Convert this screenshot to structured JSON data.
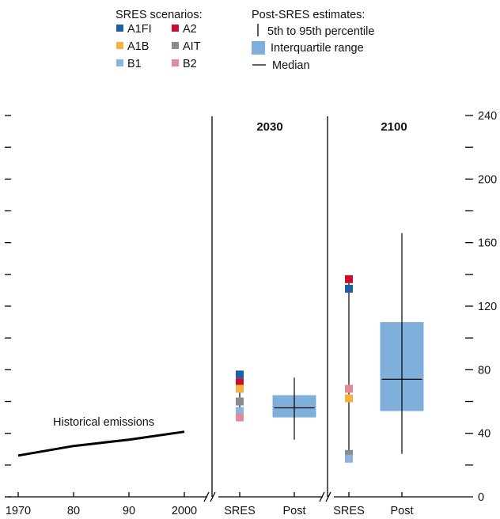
{
  "colors": {
    "A1FI": "#1f5fa6",
    "A2": "#c8102e",
    "A1B": "#f2b342",
    "AIT": "#8c8c8c",
    "B1": "#8ab4dc",
    "B2": "#e38a98",
    "iqr": "#7fb0dc",
    "line": "#000000"
  },
  "legend": {
    "sres_title": "SRES scenarios:",
    "sres_items": [
      {
        "key": "A1FI",
        "label": "A1FI"
      },
      {
        "key": "A2",
        "label": "A2"
      },
      {
        "key": "A1B",
        "label": "A1B"
      },
      {
        "key": "AIT",
        "label": "AIT"
      },
      {
        "key": "B1",
        "label": "B1"
      },
      {
        "key": "B2",
        "label": "B2"
      }
    ],
    "post_title": "Post-SRES estimates:",
    "post_items": [
      {
        "icon": "percentile-line-icon",
        "label": "5th to 95th percentile"
      },
      {
        "icon": "iqr-box-icon",
        "label": "Interquartile range"
      },
      {
        "icon": "median-line-icon",
        "label": "Median"
      }
    ]
  },
  "chart_data": {
    "type": "line",
    "y_ticks": [
      0,
      40,
      80,
      120,
      160,
      200,
      240
    ],
    "ylim": [
      0,
      240
    ],
    "historical": {
      "annotation": "Historical emissions",
      "x_ticks": [
        "1970",
        "80",
        "90",
        "2000"
      ],
      "x": [
        1970,
        1980,
        1990,
        2000
      ],
      "y": [
        26,
        32,
        36,
        41
      ]
    },
    "panels": [
      {
        "title": "2030",
        "categories": [
          "SRES",
          "Post"
        ],
        "sres": [
          {
            "scenario": "A1FI",
            "value": 77
          },
          {
            "scenario": "A2",
            "value": 72
          },
          {
            "scenario": "A1B",
            "value": 68
          },
          {
            "scenario": "AIT",
            "value": 60
          },
          {
            "scenario": "B1",
            "value": 54
          },
          {
            "scenario": "B2",
            "value": 50
          }
        ],
        "sres_range": [
          48,
          78
        ],
        "post": {
          "p5": 36,
          "q1": 50,
          "median": 56,
          "q3": 64,
          "p95": 75
        }
      },
      {
        "title": "2100",
        "categories": [
          "SRES",
          "Post"
        ],
        "sres": [
          {
            "scenario": "A2",
            "value": 137
          },
          {
            "scenario": "A1FI",
            "value": 131
          },
          {
            "scenario": "B2",
            "value": 68
          },
          {
            "scenario": "A1B",
            "value": 62
          },
          {
            "scenario": "AIT",
            "value": 27
          },
          {
            "scenario": "B1",
            "value": 24
          }
        ],
        "sres_range": [
          24,
          139
        ],
        "post": {
          "p5": 27,
          "q1": 54,
          "median": 74,
          "q3": 110,
          "p95": 166
        }
      }
    ]
  }
}
